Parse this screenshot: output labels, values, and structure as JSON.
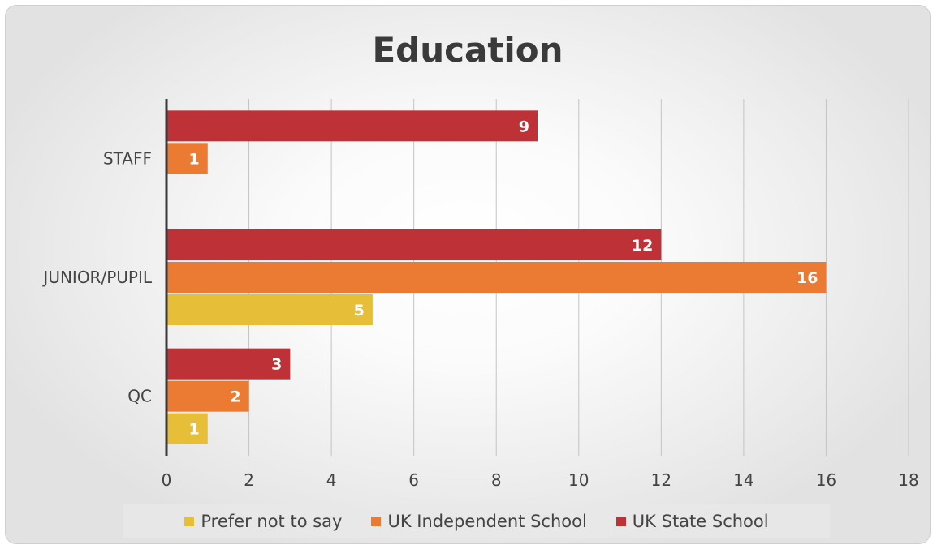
{
  "chart_data": {
    "type": "bar",
    "orientation": "horizontal",
    "title": "Education",
    "xlabel": "",
    "ylabel": "",
    "categories": [
      "STAFF",
      "JUNIOR/PUPIL",
      "QC"
    ],
    "series": [
      {
        "name": "Prefer not to say",
        "color": "#E6BE37",
        "values": [
          null,
          5,
          1
        ]
      },
      {
        "name": "UK Independent School",
        "color": "#EB7A33",
        "values": [
          1,
          16,
          2
        ]
      },
      {
        "name": "UK State School",
        "color": "#BE3237",
        "values": [
          9,
          12,
          3
        ]
      }
    ],
    "xlim": [
      0,
      18
    ],
    "xticks": [
      "0",
      "2",
      "4",
      "6",
      "8",
      "10",
      "12",
      "14",
      "16",
      "18"
    ],
    "grid": true,
    "data_labels": true,
    "legend_position": "bottom"
  }
}
